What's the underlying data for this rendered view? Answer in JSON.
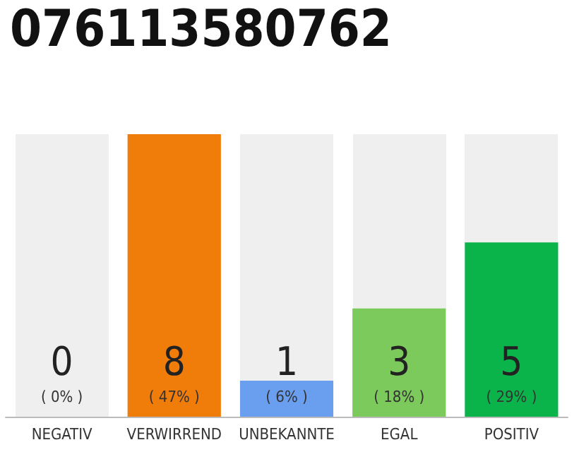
{
  "chart_data": {
    "type": "bar",
    "title": "076113580762",
    "categories": [
      "NEGATIV",
      "VERWIRREND",
      "UNBEKANNTE",
      "EGAL",
      "POSITIV"
    ],
    "values": [
      0,
      47,
      6,
      18,
      29
    ],
    "colors": [
      "#e8334a",
      "#f07d0a",
      "#6a9fef",
      "#7cc95c",
      "#0bb44a"
    ],
    "value_labels": [
      "( 0% )",
      "( 47% )",
      "( 6% )",
      "( 18% )",
      "( 29% )"
    ],
    "annotations": [
      "0",
      "8",
      "1",
      "3",
      "5"
    ]
  }
}
